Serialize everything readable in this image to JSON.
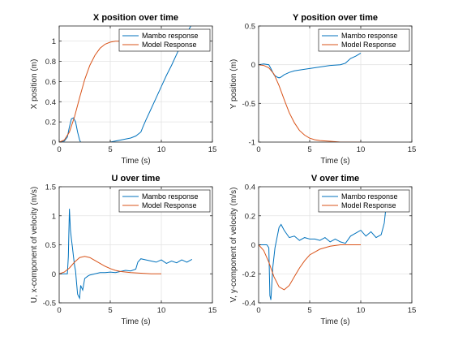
{
  "colors": {
    "mambo": "#0072bd",
    "model": "#d95319"
  },
  "chart_data": [
    {
      "type": "line",
      "title": "X position over time",
      "xlabel": "Time (s)",
      "ylabel": "X position (m)",
      "xlim": [
        0,
        15
      ],
      "ylim": [
        0,
        1.15
      ],
      "xticks": [
        0,
        5,
        10,
        15
      ],
      "yticks": [
        0,
        0.2,
        0.4,
        0.6,
        0.8,
        1
      ],
      "ytick_labels": [
        "0",
        "0.2",
        "0.4",
        "0.6",
        "0.8",
        "1"
      ],
      "grid": true,
      "legend": "top-right",
      "series": [
        {
          "name": "Mambo response",
          "color_key": "mambo",
          "x": [
            0,
            0.5,
            0.8,
            1,
            1.2,
            1.4,
            1.6,
            1.8,
            2,
            2.2,
            2.5,
            2.8,
            3,
            3.5,
            4,
            5,
            6,
            7,
            7.5,
            8,
            8.2,
            8.5,
            9,
            9.5,
            10,
            10.5,
            11,
            11.5,
            12,
            12.5,
            13
          ],
          "y": [
            0,
            0.01,
            0.05,
            0.15,
            0.23,
            0.24,
            0.2,
            0.1,
            0.02,
            -0.02,
            -0.04,
            -0.05,
            -0.05,
            -0.05,
            -0.04,
            0,
            0.02,
            0.04,
            0.06,
            0.1,
            0.15,
            0.22,
            0.33,
            0.44,
            0.55,
            0.66,
            0.76,
            0.87,
            0.98,
            1.08,
            1.17
          ]
        },
        {
          "name": "Model Response",
          "color_key": "model",
          "x": [
            0,
            0.5,
            1,
            1.5,
            2,
            2.5,
            3,
            3.5,
            4,
            4.5,
            5,
            5.5,
            6,
            6.5,
            7,
            8,
            9,
            10
          ],
          "y": [
            0,
            0.02,
            0.1,
            0.25,
            0.44,
            0.62,
            0.76,
            0.86,
            0.93,
            0.97,
            0.99,
            1.0,
            1.0,
            1.0,
            1.0,
            1.0,
            1.0,
            1.0
          ]
        }
      ]
    },
    {
      "type": "line",
      "title": "Y position over time",
      "xlabel": "Time (s)",
      "ylabel": "Y position (m)",
      "xlim": [
        0,
        15
      ],
      "ylim": [
        -1,
        0.5
      ],
      "xticks": [
        0,
        5,
        10,
        15
      ],
      "yticks": [
        -1,
        -0.5,
        0,
        0.5
      ],
      "ytick_labels": [
        "-1",
        "-0.5",
        "0",
        "0.5"
      ],
      "grid": true,
      "legend": "top-right",
      "series": [
        {
          "name": "Mambo response",
          "color_key": "mambo",
          "x": [
            0,
            0.5,
            1,
            1.2,
            1.5,
            1.8,
            2,
            2.2,
            2.5,
            3,
            3.5,
            4,
            5,
            6,
            7,
            8,
            8.5,
            9,
            9.5,
            10
          ],
          "y": [
            0,
            0.01,
            0,
            -0.05,
            -0.13,
            -0.16,
            -0.17,
            -0.16,
            -0.13,
            -0.1,
            -0.08,
            -0.07,
            -0.05,
            -0.03,
            -0.01,
            0,
            0.02,
            0.08,
            0.11,
            0.15
          ]
        },
        {
          "name": "Model Response",
          "color_key": "model",
          "x": [
            0,
            0.5,
            1,
            1.5,
            2,
            2.5,
            3,
            3.5,
            4,
            4.5,
            5,
            5.5,
            6,
            7,
            8,
            9,
            10
          ],
          "y": [
            0,
            -0.01,
            -0.04,
            -0.12,
            -0.27,
            -0.45,
            -0.62,
            -0.75,
            -0.85,
            -0.91,
            -0.95,
            -0.97,
            -0.98,
            -0.99,
            -1.0,
            -1.0,
            -1.0
          ]
        }
      ]
    },
    {
      "type": "line",
      "title": "U over time",
      "xlabel": "Time (s)",
      "ylabel": "U, x-component of velocity (m/s)",
      "xlim": [
        0,
        15
      ],
      "ylim": [
        -0.5,
        1.5
      ],
      "xticks": [
        0,
        5,
        10,
        15
      ],
      "yticks": [
        -0.5,
        0,
        0.5,
        1,
        1.5
      ],
      "ytick_labels": [
        "-0.5",
        "0",
        "0.5",
        "1",
        "1.5"
      ],
      "grid": true,
      "legend": "top-right",
      "series": [
        {
          "name": "Mambo response",
          "color_key": "mambo",
          "x": [
            0,
            0.8,
            0.9,
            1,
            1.1,
            1.2,
            1.3,
            1.4,
            1.5,
            1.6,
            1.7,
            1.8,
            2,
            2.1,
            2.3,
            2.5,
            2.8,
            3,
            3.5,
            4,
            4.5,
            5,
            5.5,
            6,
            6.5,
            7,
            7.5,
            7.7,
            8,
            8.5,
            9,
            9.5,
            10,
            10.5,
            11,
            11.5,
            12,
            12.5,
            13
          ],
          "y": [
            0,
            0,
            0.3,
            1.12,
            0.75,
            0.6,
            0.45,
            0.3,
            0.15,
            0.05,
            -0.15,
            -0.35,
            -0.42,
            -0.2,
            -0.28,
            -0.08,
            -0.04,
            -0.02,
            0,
            0.02,
            0.02,
            0.03,
            0.02,
            0.04,
            0.06,
            0.05,
            0.08,
            0.2,
            0.26,
            0.24,
            0.22,
            0.2,
            0.24,
            0.18,
            0.22,
            0.19,
            0.24,
            0.2,
            0.25
          ]
        },
        {
          "name": "Model Response",
          "color_key": "model",
          "x": [
            0,
            0.5,
            1,
            1.5,
            2,
            2.5,
            3,
            3.5,
            4,
            4.5,
            5,
            5.5,
            6,
            7,
            8,
            9,
            10
          ],
          "y": [
            0,
            0.03,
            0.1,
            0.2,
            0.28,
            0.3,
            0.28,
            0.23,
            0.18,
            0.13,
            0.09,
            0.06,
            0.04,
            0.02,
            0.01,
            0,
            0
          ]
        }
      ]
    },
    {
      "type": "line",
      "title": "V over time",
      "xlabel": "Time (s)",
      "ylabel": "V, y-component of velocity (m/s)",
      "xlim": [
        0,
        15
      ],
      "ylim": [
        -0.4,
        0.4
      ],
      "xticks": [
        0,
        5,
        10,
        15
      ],
      "yticks": [
        -0.4,
        -0.2,
        0,
        0.2,
        0.4
      ],
      "ytick_labels": [
        "-0.4",
        "-0.2",
        "0",
        "0.2",
        "0.4"
      ],
      "grid": true,
      "legend": "top-right",
      "series": [
        {
          "name": "Mambo response",
          "color_key": "mambo",
          "x": [
            0,
            0.8,
            1,
            1.1,
            1.2,
            1.4,
            1.6,
            1.8,
            2,
            2.2,
            2.5,
            3,
            3.5,
            4,
            4.5,
            5,
            5.5,
            6,
            6.5,
            7,
            7.5,
            8,
            8.5,
            9,
            9.5,
            10,
            10.5,
            11,
            11.5,
            12,
            12.3,
            12.5
          ],
          "y": [
            0,
            0,
            -0.02,
            -0.35,
            -0.38,
            -0.15,
            -0.02,
            0.05,
            0.12,
            0.14,
            0.1,
            0.05,
            0.06,
            0.03,
            0.05,
            0.04,
            0.04,
            0.03,
            0.05,
            0.02,
            0.04,
            0.02,
            0.01,
            0.06,
            0.08,
            0.1,
            0.06,
            0.09,
            0.05,
            0.07,
            0.15,
            0.28
          ]
        },
        {
          "name": "Model Response",
          "color_key": "model",
          "x": [
            0,
            0.5,
            1,
            1.5,
            2,
            2.5,
            3,
            3.5,
            4,
            4.5,
            5,
            5.5,
            6,
            7,
            8,
            9,
            10
          ],
          "y": [
            0,
            -0.04,
            -0.12,
            -0.22,
            -0.29,
            -0.31,
            -0.28,
            -0.22,
            -0.16,
            -0.11,
            -0.07,
            -0.05,
            -0.03,
            -0.01,
            0,
            0,
            0
          ]
        }
      ]
    }
  ]
}
